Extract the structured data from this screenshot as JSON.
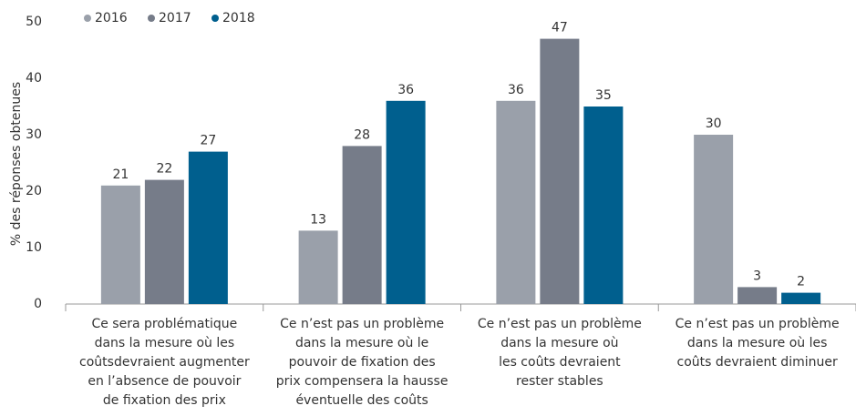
{
  "chart_data": {
    "type": "bar",
    "y_label": "% des réponses obtenues",
    "categories": [
      [
        "Ce sera problématique",
        "dans la mesure où les",
        "coûtsdevraient augmenter",
        "en l’absence de pouvoir",
        "de fixation des prix"
      ],
      [
        "Ce n’est pas un problème",
        "dans la mesure où le",
        "pouvoir de fixation des",
        "prix compensera la hausse",
        "éventuelle des coûts"
      ],
      [
        "Ce n’est pas un problème",
        "dans la mesure où",
        "les coûts devraient",
        "rester stables"
      ],
      [
        "Ce n’est pas un problème",
        "dans la mesure où les",
        "coûts devraient diminuer"
      ]
    ],
    "series": [
      {
        "name": "2016",
        "color": "#9aa0aa",
        "values": [
          21,
          13,
          36,
          30
        ]
      },
      {
        "name": "2017",
        "color": "#767c89",
        "values": [
          22,
          28,
          47,
          3
        ]
      },
      {
        "name": "2018",
        "color": "#005f8e",
        "values": [
          27,
          36,
          35,
          2
        ]
      }
    ],
    "ylim": [
      0,
      50
    ],
    "yticks": [
      0,
      10,
      20,
      30,
      40,
      50
    ],
    "grid": false,
    "legend": "top-left"
  }
}
